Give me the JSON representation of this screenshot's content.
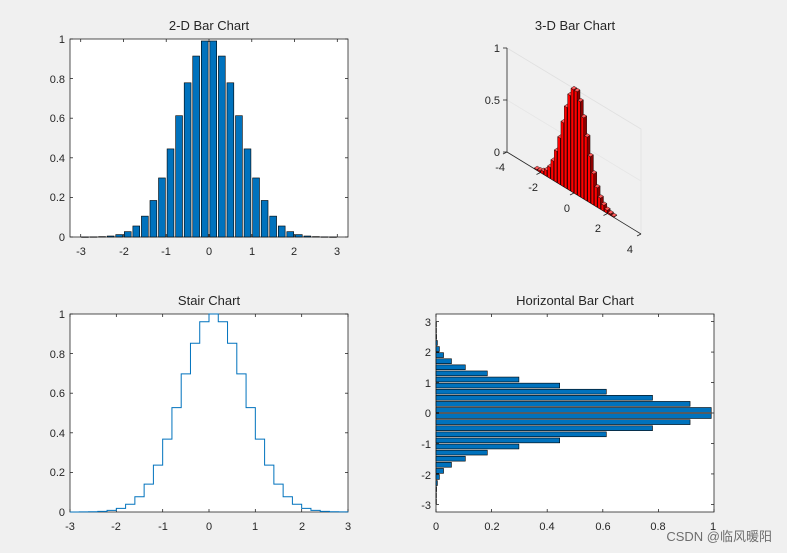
{
  "chart_data": [
    {
      "type": "bar",
      "title": "2-D Bar Chart",
      "x": [
        -2.9,
        -2.7,
        -2.5,
        -2.3,
        -2.1,
        -1.9,
        -1.7,
        -1.5,
        -1.3,
        -1.1,
        -0.9,
        -0.7,
        -0.5,
        -0.3,
        -0.1,
        0.1,
        0.3,
        0.5,
        0.7,
        0.9,
        1.1,
        1.3,
        1.5,
        1.7,
        1.9,
        2.1,
        2.3,
        2.5,
        2.7,
        2.9
      ],
      "values": [
        0.0002,
        0.0007,
        0.0019,
        0.005,
        0.0122,
        0.0271,
        0.0556,
        0.1054,
        0.1845,
        0.2982,
        0.4449,
        0.6126,
        0.7788,
        0.9139,
        0.99,
        0.99,
        0.9139,
        0.7788,
        0.6126,
        0.4449,
        0.2982,
        0.1845,
        0.1054,
        0.0556,
        0.0271,
        0.0122,
        0.005,
        0.0019,
        0.0007,
        0.0002
      ],
      "xlim": [
        -3.25,
        3.25
      ],
      "ylim": [
        0,
        1
      ],
      "xticks": [
        "-3",
        "-2",
        "-1",
        "0",
        "1",
        "2",
        "3"
      ],
      "yticks": [
        "0",
        "0.2",
        "0.4",
        "0.6",
        "0.8",
        "1"
      ],
      "bar_color": "#0072BD"
    },
    {
      "type": "bar3d",
      "title": "3-D Bar Chart",
      "x": [
        -2.9,
        -2.7,
        -2.5,
        -2.3,
        -2.1,
        -1.9,
        -1.7,
        -1.5,
        -1.3,
        -1.1,
        -0.9,
        -0.7,
        -0.5,
        -0.3,
        -0.1,
        0.1,
        0.3,
        0.5,
        0.7,
        0.9,
        1.1,
        1.3,
        1.5,
        1.7,
        1.9,
        2.1,
        2.3,
        2.5,
        2.7,
        2.9
      ],
      "values": [
        0.0002,
        0.0007,
        0.0019,
        0.005,
        0.0122,
        0.0271,
        0.0556,
        0.1054,
        0.1845,
        0.2982,
        0.4449,
        0.6126,
        0.7788,
        0.9139,
        0.99,
        0.99,
        0.9139,
        0.7788,
        0.6126,
        0.4449,
        0.2982,
        0.1845,
        0.1054,
        0.0556,
        0.0271,
        0.0122,
        0.005,
        0.0019,
        0.0007,
        0.0002
      ],
      "xlim": [
        -4,
        4
      ],
      "zlim": [
        0,
        1
      ],
      "xticks": [
        "-4",
        "-2",
        "0",
        "2",
        "4"
      ],
      "zticks": [
        "0",
        "0.5",
        "1"
      ],
      "bar_color": "#FF0000"
    },
    {
      "type": "stairs",
      "title": "Stair Chart",
      "x": [
        -3.0,
        -2.8,
        -2.6,
        -2.4,
        -2.2,
        -2.0,
        -1.8,
        -1.6,
        -1.4,
        -1.2,
        -1.0,
        -0.8,
        -0.6,
        -0.4,
        -0.2,
        0.0,
        0.2,
        0.4,
        0.6,
        0.8,
        1.0,
        1.2,
        1.4,
        1.6,
        1.8,
        2.0,
        2.2,
        2.4,
        2.6,
        2.8,
        3.0
      ],
      "values": [
        0.0001,
        0.0004,
        0.0012,
        0.0032,
        0.0079,
        0.0183,
        0.0392,
        0.0773,
        0.1409,
        0.2369,
        0.3679,
        0.5273,
        0.6977,
        0.8521,
        0.9608,
        1.0,
        0.9608,
        0.8521,
        0.6977,
        0.5273,
        0.3679,
        0.2369,
        0.1409,
        0.0773,
        0.0392,
        0.0183,
        0.0079,
        0.0032,
        0.0012,
        0.0004,
        0.0001
      ],
      "xlim": [
        -3,
        3
      ],
      "ylim": [
        0,
        1
      ],
      "xticks": [
        "-3",
        "-2",
        "-1",
        "0",
        "1",
        "2",
        "3"
      ],
      "yticks": [
        "0",
        "0.2",
        "0.4",
        "0.6",
        "0.8",
        "1"
      ],
      "line_color": "#0072BD"
    },
    {
      "type": "barh",
      "title": "Horizontal Bar Chart",
      "y": [
        -2.9,
        -2.7,
        -2.5,
        -2.3,
        -2.1,
        -1.9,
        -1.7,
        -1.5,
        -1.3,
        -1.1,
        -0.9,
        -0.7,
        -0.5,
        -0.3,
        -0.1,
        0.1,
        0.3,
        0.5,
        0.7,
        0.9,
        1.1,
        1.3,
        1.5,
        1.7,
        1.9,
        2.1,
        2.3,
        2.5,
        2.7,
        2.9
      ],
      "values": [
        0.0002,
        0.0007,
        0.0019,
        0.005,
        0.0122,
        0.0271,
        0.0556,
        0.1054,
        0.1845,
        0.2982,
        0.4449,
        0.6126,
        0.7788,
        0.9139,
        0.99,
        0.99,
        0.9139,
        0.7788,
        0.6126,
        0.4449,
        0.2982,
        0.1845,
        0.1054,
        0.0556,
        0.0271,
        0.0122,
        0.005,
        0.0019,
        0.0007,
        0.0002
      ],
      "xlim": [
        0,
        1
      ],
      "ylim": [
        -3.25,
        3.25
      ],
      "xticks": [
        "0",
        "0.2",
        "0.4",
        "0.6",
        "0.8",
        "1"
      ],
      "yticks": [
        "-3",
        "-2",
        "-1",
        "0",
        "1",
        "2",
        "3"
      ],
      "bar_color": "#0072BD"
    }
  ],
  "watermark": "CSDN @临风暖阳"
}
